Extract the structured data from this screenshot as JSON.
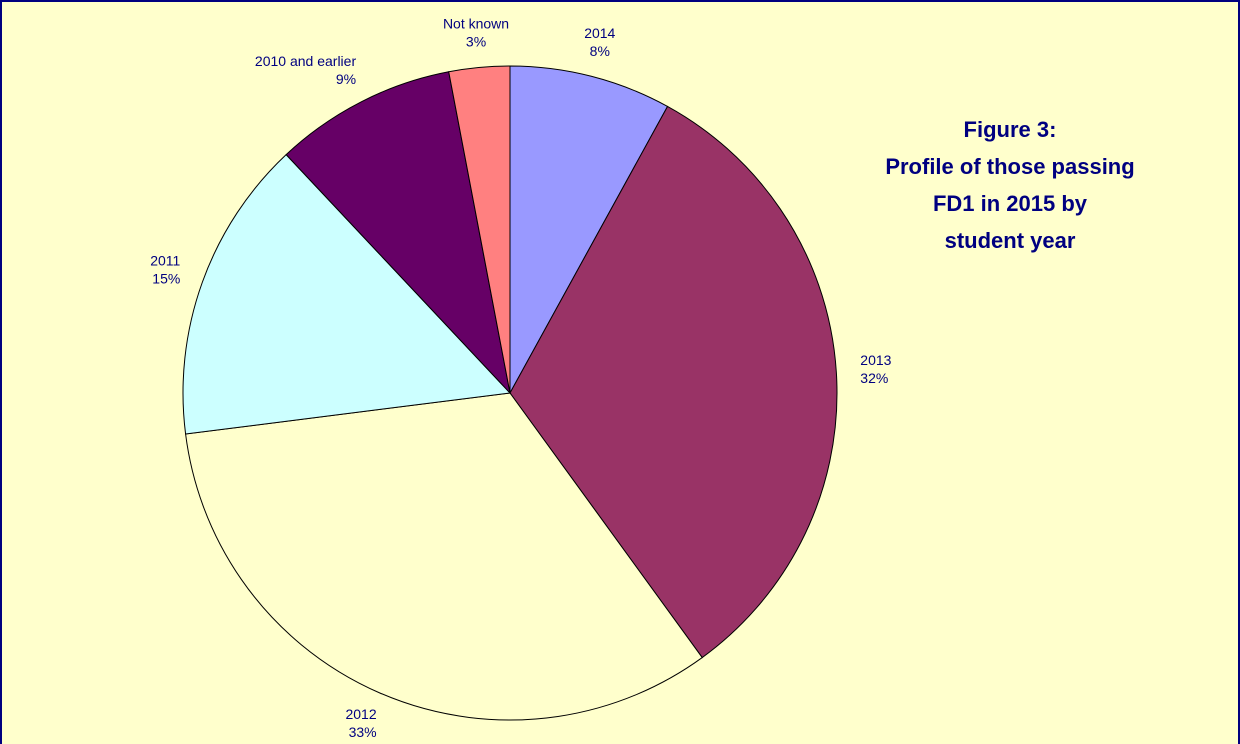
{
  "chart_data": {
    "type": "pie",
    "title": [
      "Figure 3:",
      "Profile of those passing",
      "FD1 in 2015 by",
      "student year"
    ],
    "categories": [
      "2014",
      "2013",
      "2012",
      "2011",
      "2010 and earlier",
      "Not known"
    ],
    "values": [
      8,
      32,
      33,
      15,
      9,
      3
    ],
    "value_labels": [
      "8%",
      "32%",
      "33%",
      "15%",
      "9%",
      "3%"
    ],
    "colors": [
      "#9999ff",
      "#993366",
      "#ffffcc",
      "#ccffff",
      "#660066",
      "#ff8080"
    ]
  }
}
